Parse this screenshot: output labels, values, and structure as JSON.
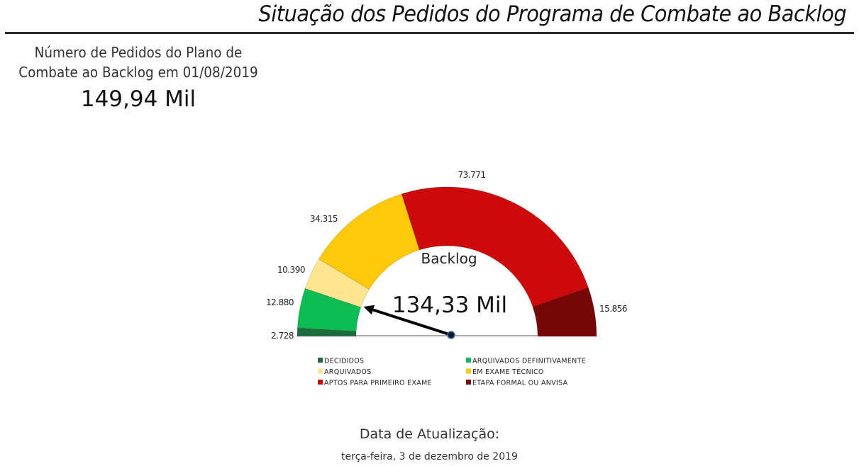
{
  "header": {
    "title": "Situação dos Pedidos do Programa de Combate ao Backlog"
  },
  "kpi": {
    "label": "Número de Pedidos do Plano de Combate ao Backlog em 01/08/2019",
    "value": "149,94 Mil"
  },
  "chart_data": {
    "type": "gauge",
    "title": "Backlog",
    "center_value": "134,33 Mil",
    "total": 149940,
    "needle_value": 15608,
    "categories": [
      "DECIDIDOS",
      "ARQUIVADOS DEFINITIVAMENTE",
      "ARQUIVADOS",
      "EM EXAME TÉCNICO",
      "APTOS PARA PRIMEIRO EXAME",
      "ETAPA FORMAL OU ANVISA"
    ],
    "values": [
      2728,
      12880,
      10390,
      34315,
      73771,
      15856
    ],
    "labels": [
      "2.728",
      "12.880",
      "10.390",
      "34.315",
      "73.771",
      "15.856"
    ],
    "colors": [
      "#1e6b3e",
      "#0dbb55",
      "#fde68f",
      "#fdc90a",
      "#cc0a0a",
      "#760606"
    ],
    "legend_position": "bottom"
  },
  "footer": {
    "label": "Data de Atualização:",
    "date": "terça-feira, 3 de dezembro de 2019"
  }
}
